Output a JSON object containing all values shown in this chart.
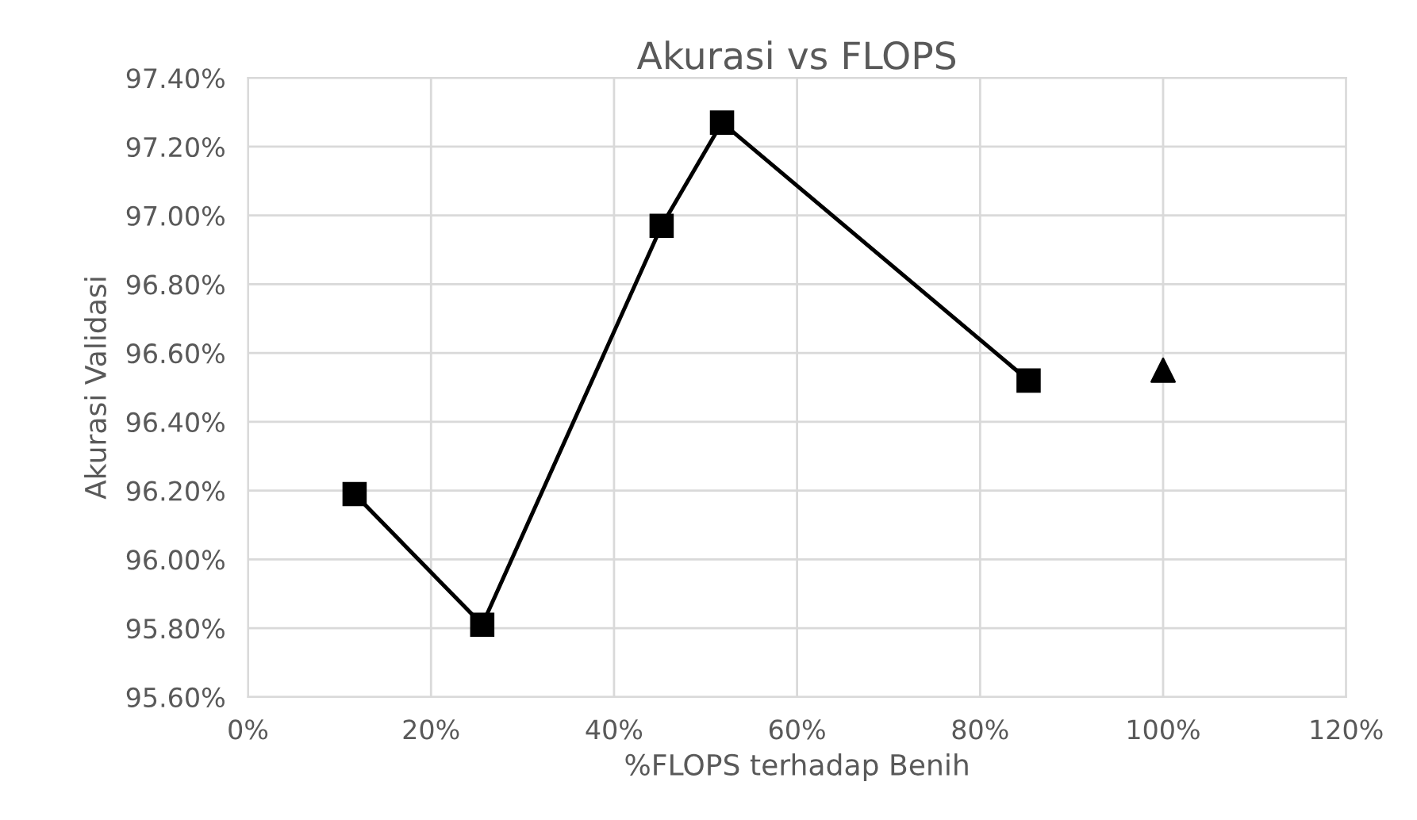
{
  "chart_data": {
    "type": "line",
    "title": "Akurasi vs FLOPS",
    "xlabel": "%FLOPS terhadap Benih",
    "ylabel": "Akurasi Validasi",
    "series": [
      {
        "color": "#000000",
        "marker": "square",
        "x": [
          11.65,
          25.6,
          45.2,
          51.8,
          85.3
        ],
        "values": [
          96.19,
          95.81,
          96.97,
          97.27,
          96.52
        ]
      },
      {
        "type": "scatter",
        "color": "#000000",
        "marker": "triangle",
        "x": [
          100
        ],
        "values": [
          96.55
        ]
      }
    ],
    "xlim": [
      0,
      120
    ],
    "ylim": [
      95.6,
      97.4
    ],
    "xticks": [
      {
        "value": 0,
        "label": "0%"
      },
      {
        "value": 20,
        "label": "20%"
      },
      {
        "value": 40,
        "label": "40%"
      },
      {
        "value": 60,
        "label": "60%"
      },
      {
        "value": 80,
        "label": "80%"
      },
      {
        "value": 100,
        "label": "100%"
      },
      {
        "value": 120,
        "label": "120%"
      }
    ],
    "yticks": [
      {
        "value": 95.6,
        "label": "95.60%"
      },
      {
        "value": 95.8,
        "label": "95.80%"
      },
      {
        "value": 96.0,
        "label": "96.00%"
      },
      {
        "value": 96.2,
        "label": "96.20%"
      },
      {
        "value": 96.4,
        "label": "96.40%"
      },
      {
        "value": 96.6,
        "label": "96.60%"
      },
      {
        "value": 96.8,
        "label": "96.80%"
      },
      {
        "value": 97.0,
        "label": "97.00%"
      },
      {
        "value": 97.2,
        "label": "97.20%"
      },
      {
        "value": 97.4,
        "label": "97.40%"
      }
    ],
    "grid": true,
    "line_style": "solid"
  }
}
